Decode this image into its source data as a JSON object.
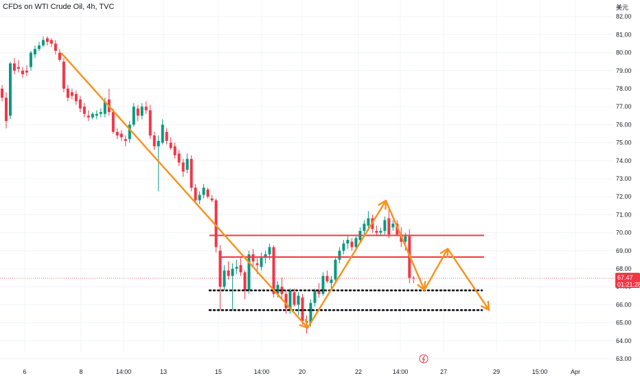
{
  "header": {
    "title": "CFDs on WTI Crude Oil, 4h, TVC"
  },
  "chart_data": {
    "type": "candlestick",
    "title": "CFDs on WTI Crude Oil, 4h, TVC",
    "y_unit_label": "美元",
    "ylim": [
      62.8,
      82.4
    ],
    "y_ticks": [
      "63.00",
      "64.00",
      "65.00",
      "66.00",
      "67.00",
      "68.00",
      "69.00",
      "70.00",
      "71.00",
      "72.00",
      "73.00",
      "74.00",
      "75.00",
      "76.00",
      "77.00",
      "78.00",
      "79.00",
      "80.00",
      "81.00",
      "82.00"
    ],
    "x_labels": [
      "6",
      "8",
      "14:00",
      "13",
      "15",
      "14:00",
      "20",
      "22",
      "14:00",
      "27",
      "29",
      "15:00",
      "Apr"
    ],
    "last_price": {
      "value": "67.47",
      "countdown": "01:21:28",
      "color": "#f23645"
    },
    "colors": {
      "up": "#089981",
      "down": "#f23645",
      "annotation": "#f7931e",
      "level": "#f23645",
      "support": "#000000"
    },
    "candles": [
      [
        78.0,
        78.2,
        77.3,
        77.5
      ],
      [
        77.5,
        77.8,
        75.8,
        76.2
      ],
      [
        76.5,
        79.5,
        76.3,
        79.4
      ],
      [
        79.4,
        79.7,
        78.8,
        79.0
      ],
      [
        79.2,
        79.6,
        78.9,
        79.1
      ],
      [
        79.0,
        79.2,
        78.6,
        78.8
      ],
      [
        79.0,
        79.3,
        78.7,
        78.9
      ],
      [
        79.2,
        80.1,
        79.0,
        80.0
      ],
      [
        79.9,
        80.4,
        79.7,
        80.2
      ],
      [
        80.2,
        80.6,
        80.1,
        80.4
      ],
      [
        80.4,
        80.9,
        80.3,
        80.7
      ],
      [
        80.8,
        80.9,
        80.4,
        80.6
      ],
      [
        80.7,
        80.8,
        80.3,
        80.5
      ],
      [
        80.5,
        80.7,
        79.9,
        80.1
      ],
      [
        80.0,
        80.2,
        79.5,
        79.6
      ],
      [
        79.5,
        79.7,
        77.8,
        78.0
      ],
      [
        78.0,
        78.2,
        77.3,
        77.5
      ],
      [
        77.8,
        78.0,
        77.4,
        77.6
      ],
      [
        77.7,
        77.9,
        77.1,
        77.3
      ],
      [
        77.4,
        77.6,
        76.7,
        76.9
      ],
      [
        77.0,
        77.2,
        76.4,
        76.6
      ],
      [
        76.5,
        76.8,
        76.2,
        76.4
      ],
      [
        76.4,
        76.7,
        76.3,
        76.6
      ],
      [
        76.5,
        76.8,
        76.3,
        76.6
      ],
      [
        76.6,
        76.9,
        76.4,
        76.7
      ],
      [
        76.6,
        77.5,
        76.4,
        77.3
      ],
      [
        77.4,
        78.0,
        76.5,
        76.7
      ],
      [
        76.7,
        76.9,
        75.5,
        75.6
      ],
      [
        75.6,
        75.8,
        75.2,
        75.4
      ],
      [
        75.5,
        75.7,
        75.1,
        75.3
      ],
      [
        75.2,
        75.4,
        74.8,
        75.1
      ],
      [
        75.2,
        76.2,
        75.0,
        76.0
      ],
      [
        76.0,
        77.2,
        75.9,
        77.0
      ],
      [
        76.9,
        77.1,
        76.2,
        76.5
      ],
      [
        76.5,
        77.2,
        76.3,
        77.0
      ],
      [
        77.0,
        77.3,
        76.6,
        76.8
      ],
      [
        76.8,
        77.1,
        75.2,
        75.4
      ],
      [
        75.4,
        75.6,
        74.6,
        74.8
      ],
      [
        74.8,
        75.4,
        72.3,
        75.1
      ],
      [
        75.0,
        76.3,
        74.9,
        76.0
      ],
      [
        75.6,
        75.8,
        74.9,
        75.1
      ],
      [
        75.0,
        75.3,
        74.6,
        74.7
      ],
      [
        74.8,
        75.0,
        74.1,
        74.3
      ],
      [
        74.4,
        74.6,
        73.7,
        73.9
      ],
      [
        73.9,
        74.1,
        73.1,
        73.4
      ],
      [
        73.5,
        74.4,
        73.3,
        74.1
      ],
      [
        74.1,
        74.3,
        72.3,
        72.5
      ],
      [
        72.5,
        72.7,
        71.6,
        71.8
      ],
      [
        71.8,
        72.3,
        71.6,
        72.1
      ],
      [
        72.1,
        72.7,
        71.9,
        72.5
      ],
      [
        72.4,
        72.5,
        71.9,
        72.0
      ],
      [
        71.9,
        72.1,
        71.7,
        71.8
      ],
      [
        71.8,
        71.9,
        68.9,
        69.2
      ],
      [
        69.0,
        69.3,
        65.7,
        67.0
      ],
      [
        67.0,
        68.2,
        66.8,
        67.9
      ],
      [
        67.9,
        68.4,
        67.4,
        67.6
      ],
      [
        67.6,
        68.3,
        65.7,
        68.0
      ],
      [
        68.0,
        68.5,
        67.7,
        68.1
      ],
      [
        68.2,
        68.6,
        67.6,
        67.8
      ],
      [
        67.8,
        67.9,
        66.3,
        66.8
      ],
      [
        66.8,
        69.0,
        66.6,
        68.8
      ],
      [
        68.8,
        69.1,
        68.1,
        68.4
      ],
      [
        68.3,
        68.6,
        67.7,
        68.2
      ],
      [
        68.1,
        68.9,
        67.9,
        68.6
      ],
      [
        68.6,
        69.0,
        68.3,
        68.8
      ],
      [
        68.8,
        69.4,
        68.5,
        69.2
      ],
      [
        69.2,
        69.3,
        66.4,
        66.6
      ],
      [
        66.6,
        67.3,
        66.4,
        67.1
      ],
      [
        67.0,
        67.5,
        66.3,
        66.6
      ],
      [
        66.6,
        66.8,
        65.5,
        65.8
      ],
      [
        65.7,
        66.9,
        65.5,
        66.8
      ],
      [
        66.7,
        66.9,
        65.9,
        66.0
      ],
      [
        66.0,
        66.7,
        65.4,
        66.5
      ],
      [
        66.4,
        66.6,
        64.9,
        65.1
      ],
      [
        65.1,
        65.4,
        64.4,
        65.0
      ],
      [
        65.0,
        66.3,
        64.8,
        66.1
      ],
      [
        66.1,
        66.9,
        65.9,
        66.8
      ],
      [
        66.8,
        67.2,
        66.4,
        66.6
      ],
      [
        66.6,
        67.8,
        66.5,
        67.6
      ],
      [
        67.6,
        67.9,
        67.2,
        67.3
      ],
      [
        67.2,
        67.6,
        66.9,
        67.4
      ],
      [
        67.4,
        68.6,
        67.2,
        68.5
      ],
      [
        68.5,
        69.2,
        68.3,
        69.0
      ],
      [
        69.0,
        69.6,
        68.8,
        69.4
      ],
      [
        69.4,
        69.8,
        69.1,
        69.6
      ],
      [
        69.5,
        69.7,
        69.0,
        69.2
      ],
      [
        69.2,
        69.8,
        69.0,
        69.7
      ],
      [
        69.6,
        70.3,
        69.4,
        70.1
      ],
      [
        70.1,
        70.7,
        69.8,
        70.5
      ],
      [
        70.4,
        71.2,
        70.1,
        70.8
      ],
      [
        70.8,
        71.0,
        70.0,
        70.2
      ],
      [
        70.1,
        70.4,
        69.8,
        70.0
      ],
      [
        70.0,
        70.3,
        69.8,
        70.1
      ],
      [
        70.1,
        70.9,
        69.9,
        70.7
      ],
      [
        70.8,
        71.3,
        69.7,
        69.9
      ],
      [
        70.3,
        70.7,
        70.1,
        70.5
      ],
      [
        70.5,
        70.7,
        69.8,
        69.9
      ],
      [
        69.9,
        70.3,
        69.2,
        69.5
      ],
      [
        69.5,
        70.0,
        69.0,
        69.8
      ],
      [
        69.8,
        70.2,
        67.2,
        67.5
      ],
      [
        67.5,
        67.6,
        67.2,
        67.47
      ]
    ],
    "annotations": {
      "resistance_levels": [
        69.85,
        68.65
      ],
      "support_levels": [
        66.8,
        65.7
      ]
    }
  }
}
